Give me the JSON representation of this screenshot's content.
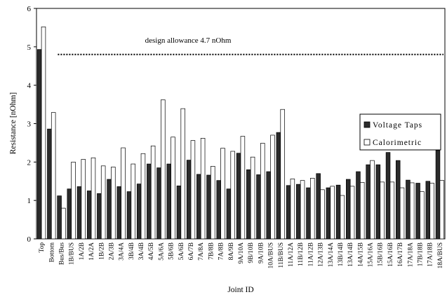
{
  "chart_data": {
    "type": "bar",
    "title": "",
    "xlabel": "Joint ID",
    "ylabel": "Resistance [nOhm]",
    "ylim": [
      0,
      6
    ],
    "yticks": [
      "0",
      "1",
      "2",
      "3",
      "4",
      "5",
      "6"
    ],
    "grid": false,
    "legend_position": "right",
    "categories": [
      "Top",
      "Bottom",
      "Bus/Bus",
      "1B/BUS",
      "1A/2B",
      "1A/2A",
      "1B/2B",
      "2A/3B",
      "3A/4A",
      "3B/4B",
      "3A/4B",
      "4A/5B",
      "5A/6A",
      "5B/6B",
      "5A/6B",
      "6A/7B",
      "7A/8A",
      "7B/8B",
      "7A/8B",
      "8A/9B",
      "9A/10A",
      "9B/10B",
      "9A/10B",
      "10A/BUS",
      "11B/BUS",
      "11A/12A",
      "11B/12B",
      "11A/12B",
      "12A/13B",
      "13A/14A",
      "13B/14B",
      "13A/14B",
      "14A/15B",
      "15A/16A",
      "15B/16B",
      "15A/16B",
      "16A/17B",
      "17A/18A",
      "17B/18B",
      "17A/18B",
      "18A/BUS"
    ],
    "series": [
      {
        "name": "Voltage Taps",
        "color": "#2b2b2b",
        "values": [
          4.93,
          2.86,
          1.12,
          1.3,
          1.36,
          1.25,
          1.18,
          1.55,
          1.36,
          1.23,
          1.43,
          1.95,
          1.85,
          1.95,
          1.38,
          2.05,
          1.68,
          1.66,
          1.52,
          1.3,
          2.23,
          1.8,
          1.67,
          1.75,
          2.77,
          1.39,
          1.42,
          1.33,
          1.7,
          1.33,
          1.4,
          1.55,
          1.75,
          1.93,
          1.93,
          2.25,
          2.04,
          1.53,
          1.45,
          1.5,
          2.3
        ]
      },
      {
        "name": "Calorimetric",
        "color": "#ffffff",
        "values": [
          5.52,
          3.29,
          0.8,
          2.0,
          2.07,
          2.11,
          1.9,
          1.87,
          2.37,
          1.95,
          2.22,
          2.42,
          3.62,
          2.65,
          3.39,
          2.56,
          2.62,
          1.89,
          2.36,
          2.28,
          2.67,
          2.13,
          2.49,
          2.7,
          3.37,
          1.56,
          1.52,
          1.58,
          1.28,
          1.37,
          1.13,
          1.37,
          1.47,
          2.04,
          1.48,
          1.48,
          1.33,
          1.46,
          1.23,
          1.45,
          1.52
        ]
      }
    ],
    "annotations": [
      {
        "text": "design allowance 4.7 nOhm",
        "y": 4.8,
        "x_start": "Bus/Bus",
        "style": "dotted"
      }
    ]
  }
}
